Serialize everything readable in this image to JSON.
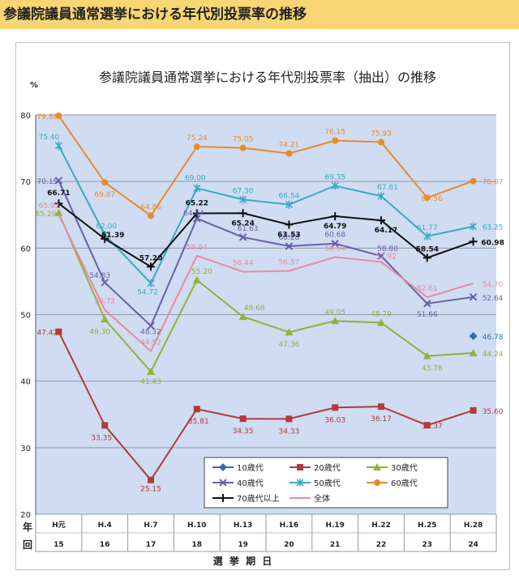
{
  "header": {
    "title": "参議院議員通常選挙における年代別投票率の推移"
  },
  "chart_data": {
    "type": "line",
    "title": "参議院議員通常選挙における年代別投票率（抽出）の推移",
    "ylabel": "%",
    "xlabel": "選 挙 期 日",
    "row_labels": [
      "年",
      "回"
    ],
    "ylim": [
      20,
      80
    ],
    "yticks": [
      20,
      30,
      40,
      50,
      60,
      70,
      80
    ],
    "grid": true,
    "legend_position": "bottom-right",
    "x_top": [
      "H元",
      "H.4",
      "H.7",
      "H.10",
      "H.13",
      "H.16",
      "H.19",
      "H.22",
      "H.25",
      "H.28"
    ],
    "x_bottom": [
      "15",
      "16",
      "17",
      "18",
      "19",
      "20",
      "21",
      "22",
      "23",
      "24"
    ],
    "series": [
      {
        "name": "10歳代",
        "color": "#2e6db0",
        "marker": "diamond",
        "values": [
          null,
          null,
          null,
          null,
          null,
          null,
          null,
          null,
          null,
          46.78
        ],
        "labels": [
          null,
          null,
          null,
          null,
          null,
          null,
          null,
          null,
          null,
          "46.78"
        ]
      },
      {
        "name": "20歳代",
        "color": "#b23a3a",
        "marker": "square",
        "values": [
          47.42,
          33.35,
          25.15,
          35.81,
          34.35,
          34.33,
          36.03,
          36.17,
          33.37,
          35.6
        ],
        "labels": [
          "47.42",
          "33.35",
          "25.15",
          "35.81",
          "34.35",
          "34.33",
          "36.03",
          "36.17",
          "33.37",
          "35.60"
        ]
      },
      {
        "name": "30歳代",
        "color": "#8db33c",
        "marker": "triangle",
        "values": [
          65.29,
          49.3,
          41.43,
          55.2,
          49.68,
          47.36,
          49.05,
          48.79,
          43.78,
          44.24
        ],
        "labels": [
          "65.29",
          "49.30",
          "41.43",
          "55.20",
          "49.68",
          "47.36",
          "49.05",
          "48.79",
          "43.78",
          "44.24"
        ]
      },
      {
        "name": "40歳代",
        "color": "#6a5ea8",
        "marker": "x",
        "values": [
          70.15,
          54.83,
          48.32,
          64.44,
          61.63,
          60.28,
          60.68,
          58.8,
          51.66,
          52.64
        ],
        "labels": [
          "70.15",
          "54.83",
          "48.32",
          "64.44",
          "61.63",
          "60.28",
          "60.68",
          "58.80",
          "51.66",
          "52.64"
        ]
      },
      {
        "name": "50歳代",
        "color": "#3aa9c2",
        "marker": "star",
        "values": [
          75.4,
          62.0,
          54.72,
          69.0,
          67.3,
          66.54,
          69.35,
          67.81,
          61.77,
          63.25
        ],
        "labels": [
          "75.40",
          "62.00",
          "54.72",
          "69.00",
          "67.30",
          "66.54",
          "69.35",
          "67.81",
          "61.77",
          "63.25"
        ]
      },
      {
        "name": "60歳代",
        "color": "#e88a2e",
        "marker": "circle",
        "values": [
          79.89,
          69.87,
          64.86,
          75.24,
          75.05,
          74.21,
          76.15,
          75.93,
          67.56,
          70.07
        ],
        "labels": [
          "79.89",
          "69.87",
          "64.86",
          "75.24",
          "75.05",
          "74.21",
          "76.15",
          "75.93",
          "67.56",
          "70.07"
        ]
      },
      {
        "name": "70歳代以上",
        "color": "#111111",
        "marker": "plus",
        "values": [
          66.71,
          61.39,
          57.2,
          65.22,
          65.24,
          63.53,
          64.79,
          64.17,
          58.54,
          60.98
        ],
        "labels": [
          "66.71",
          "61.39",
          "57.20",
          "65.22",
          "65.24",
          "63.53",
          "64.79",
          "64.17",
          "58.54",
          "60.98"
        ]
      },
      {
        "name": "全体",
        "color": "#e98aa0",
        "marker": "none",
        "values": [
          65.02,
          50.72,
          44.52,
          58.84,
          56.44,
          56.57,
          58.64,
          57.92,
          52.61,
          54.7
        ],
        "labels": [
          "65.02",
          "50.72",
          "44.52",
          "58.84",
          "56.44",
          "56.57",
          "58.64",
          "57.92",
          "52.61",
          "54.70"
        ]
      }
    ]
  }
}
